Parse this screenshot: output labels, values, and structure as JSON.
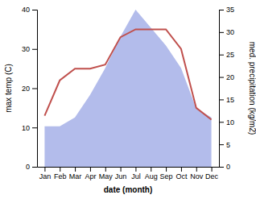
{
  "chart_data": {
    "type": "line",
    "categories": [
      "Jan",
      "Feb",
      "Mar",
      "Apr",
      "May",
      "Jun",
      "Jul",
      "Aug",
      "Sep",
      "Oct",
      "Nov",
      "Dec"
    ],
    "series": [
      {
        "type": "area",
        "axis": "y2",
        "color": "#b3bceb",
        "values": [
          9,
          9,
          11,
          16,
          22,
          29,
          35,
          31,
          27,
          22,
          13,
          11
        ]
      },
      {
        "type": "line",
        "color": "#c0504d",
        "values": [
          13,
          22,
          25,
          25,
          26,
          33,
          35,
          35,
          35,
          30,
          15,
          12
        ]
      }
    ],
    "ylim": [
      0,
      40
    ],
    "yticks": [
      0,
      10,
      20,
      30,
      40
    ],
    "y2lim": [
      0,
      35
    ],
    "y2ticks": [
      0,
      5,
      10,
      15,
      20,
      25,
      30,
      35
    ],
    "xlabel": "date (month)",
    "ylabel": "max temp (C)",
    "y2label": "med. precipitation (kg/m2)",
    "grid": false
  }
}
